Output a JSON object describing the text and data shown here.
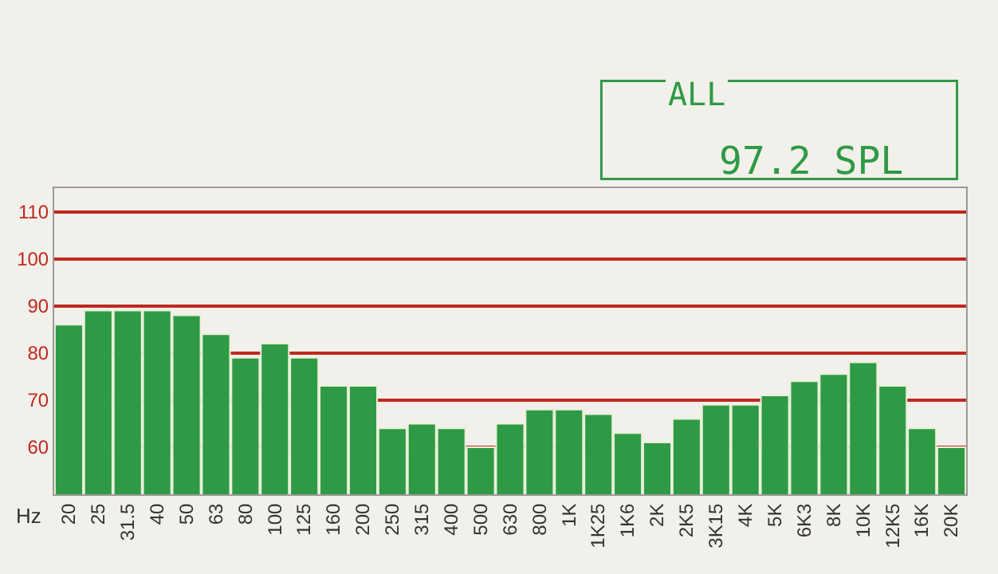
{
  "chart_data": {
    "type": "bar",
    "xlabel": "Hz",
    "categories": [
      "20",
      "25",
      "31.5",
      "40",
      "50",
      "63",
      "80",
      "100",
      "125",
      "160",
      "200",
      "250",
      "315",
      "400",
      "500",
      "630",
      "800",
      "1K",
      "1K25",
      "1K6",
      "2K",
      "2K5",
      "3K15",
      "4K",
      "5K",
      "6K3",
      "8K",
      "10K",
      "12K5",
      "16K",
      "20K"
    ],
    "values": [
      86,
      89,
      89,
      89,
      88,
      84,
      79,
      82,
      79,
      73,
      73,
      64,
      65,
      64,
      60,
      65,
      68,
      68,
      67,
      63,
      61,
      66,
      69,
      69,
      71,
      74,
      75.5,
      78,
      73,
      64,
      60
    ],
    "color": "#2f9a45",
    "ylim": [
      50,
      115
    ],
    "yticks": [
      60,
      70,
      80,
      90,
      100,
      110
    ],
    "grid": "y",
    "annotations": [
      "ALL",
      "97.2 SPL"
    ]
  }
}
